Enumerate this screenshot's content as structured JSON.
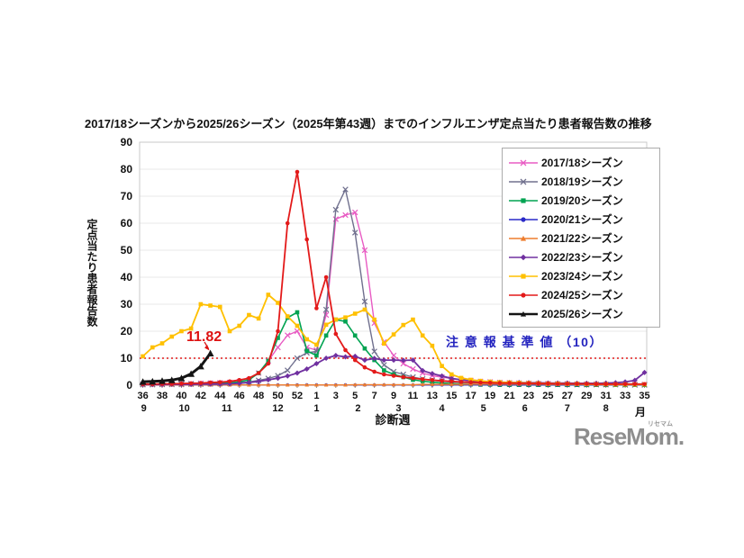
{
  "chart_data": {
    "type": "line",
    "title": "2017/18シーズンから2025/26シーズン（2025年第43週）までのインフルエンザ定点当たり患者報告数の推移",
    "ylabel": "定点当たり患者報告数",
    "xlabel": "診断週",
    "month_unit": "月",
    "ylim": [
      0,
      90
    ],
    "y_ticks": [
      0,
      10,
      20,
      30,
      40,
      50,
      60,
      70,
      80,
      90
    ],
    "grid": true,
    "legend_position": "top-right",
    "weeks": [
      36,
      37,
      38,
      39,
      40,
      41,
      42,
      43,
      44,
      45,
      46,
      47,
      48,
      49,
      50,
      51,
      52,
      53,
      1,
      2,
      3,
      4,
      5,
      6,
      7,
      8,
      9,
      10,
      11,
      12,
      13,
      14,
      15,
      16,
      17,
      18,
      19,
      20,
      21,
      22,
      23,
      24,
      25,
      26,
      27,
      28,
      29,
      30,
      31,
      32,
      33,
      34,
      35
    ],
    "x_tick_weeks": [
      36,
      38,
      40,
      42,
      44,
      46,
      48,
      50,
      52,
      1,
      3,
      5,
      7,
      9,
      11,
      13,
      15,
      17,
      19,
      21,
      23,
      25,
      27,
      29,
      31,
      33,
      35
    ],
    "month_ticks": [
      {
        "label": "9",
        "pos": 0.1
      },
      {
        "label": "10",
        "pos": 4.3
      },
      {
        "label": "11",
        "pos": 8.7
      },
      {
        "label": "12",
        "pos": 14
      },
      {
        "label": "1",
        "pos": 18
      },
      {
        "label": "2",
        "pos": 22.3
      },
      {
        "label": "3",
        "pos": 26.5
      },
      {
        "label": "4",
        "pos": 31
      },
      {
        "label": "5",
        "pos": 35.3
      },
      {
        "label": "6",
        "pos": 39.6
      },
      {
        "label": "7",
        "pos": 44
      },
      {
        "label": "8",
        "pos": 48
      }
    ],
    "threshold": {
      "value": 10,
      "label": "注 意 報 基 準 値 （10）",
      "text_color": "#2323bf",
      "line_color": "#e01b1b"
    },
    "annotation": {
      "text": "11.82",
      "series": "2025/26シーズン",
      "week": 43,
      "value": 11.82,
      "color": "#dd1111"
    },
    "series": [
      {
        "name": "2017/18シーズン",
        "color": "#e85bc3",
        "marker": "x",
        "width": 1.4,
        "values": [
          0.3,
          0.3,
          0.4,
          0.4,
          0.5,
          0.6,
          0.7,
          0.8,
          0.9,
          1.0,
          1.3,
          2.0,
          4.5,
          9,
          14,
          18.5,
          20,
          14,
          13,
          26,
          61.5,
          63,
          64,
          50,
          23,
          16,
          11,
          8,
          6,
          4.5,
          3.5,
          3,
          2.5,
          2,
          1.7,
          1.4,
          1.2,
          1.0,
          0.9,
          0.8,
          0.7,
          0.6,
          0.6,
          0.5,
          0.5,
          0.4,
          0.4,
          0.4,
          0.3,
          0.3,
          0.3,
          0.3,
          0.3
        ]
      },
      {
        "name": "2018/19シーズン",
        "color": "#70708e",
        "marker": "x",
        "width": 1.4,
        "values": [
          0.2,
          0.2,
          0.3,
          0.3,
          0.3,
          0.4,
          0.4,
          0.5,
          0.6,
          0.7,
          0.9,
          1.2,
          1.8,
          2.5,
          3.5,
          5.5,
          10,
          12,
          12.5,
          28,
          65,
          72.5,
          56.5,
          31,
          12.5,
          7.5,
          5,
          4,
          3,
          2.3,
          1.8,
          1.5,
          1.2,
          1.0,
          0.9,
          0.8,
          0.7,
          0.6,
          0.5,
          0.5,
          0.4,
          0.4,
          0.3,
          0.3,
          0.3,
          0.2,
          0.2,
          0.2,
          0.2,
          0.2,
          0.1,
          0.1,
          0.1
        ]
      },
      {
        "name": "2019/20シーズン",
        "color": "#00a351",
        "marker": "square",
        "width": 1.6,
        "values": [
          0.3,
          0.3,
          0.3,
          0.4,
          0.4,
          0.5,
          0.5,
          0.6,
          0.7,
          0.9,
          1.2,
          2,
          4.5,
          9,
          17.5,
          25,
          27,
          12.7,
          11,
          18.4,
          24.3,
          23.6,
          18.4,
          13.6,
          9.3,
          5.5,
          4,
          3,
          2,
          1.5,
          1.1,
          0.8,
          0.6,
          0.4,
          0.3,
          0.2,
          0.2,
          0.1,
          0.1,
          0.1,
          0.1,
          0.1,
          0.1,
          0.1,
          0.1,
          0.1,
          0.1,
          0.1,
          0.1,
          0.1,
          0.1,
          0.1,
          0.1
        ]
      },
      {
        "name": "2020/21シーズン",
        "color": "#2a2ac8",
        "marker": "circle",
        "width": 1.4,
        "values": [
          0.1,
          0.1,
          0.1,
          0.1,
          0.1,
          0.1,
          0.1,
          0.1,
          0.1,
          0.1,
          0.1,
          0.1,
          0.1,
          0.1,
          0.1,
          0.1,
          0.1,
          0.1,
          0.1,
          0.1,
          0.1,
          0.1,
          0.1,
          0.1,
          0.1,
          0.1,
          0.1,
          0.1,
          0.1,
          0.1,
          0.1,
          0.1,
          0.1,
          0.1,
          0.1,
          0.1,
          0.1,
          0.1,
          0.1,
          0.1,
          0.1,
          0.1,
          0.1,
          0.1,
          0.1,
          0.1,
          0.1,
          0.1,
          0.1,
          0.1,
          0.1,
          0.1,
          0.1
        ]
      },
      {
        "name": "2021/22シーズン",
        "color": "#ee7d2e",
        "marker": "triangle",
        "width": 1.4,
        "values": [
          0.1,
          0.1,
          0.1,
          0.1,
          0.1,
          0.1,
          0.1,
          0.1,
          0.1,
          0.1,
          0.1,
          0.1,
          0.1,
          0.1,
          0.1,
          0.1,
          0.1,
          0.1,
          0.1,
          0.1,
          0.1,
          0.1,
          0.2,
          0.2,
          0.2,
          0.2,
          0.2,
          0.2,
          0.2,
          0.3,
          0.3,
          0.3,
          0.3,
          0.3,
          0.4,
          0.4,
          0.4,
          0.4,
          0.4,
          0.4,
          0.4,
          0.4,
          0.3,
          0.3,
          0.3,
          0.3,
          0.3,
          0.2,
          0.2,
          0.2,
          0.2,
          0.2,
          0.2
        ]
      },
      {
        "name": "2022/23シーズン",
        "color": "#7030a0",
        "marker": "diamond",
        "width": 1.8,
        "values": [
          0.2,
          0.2,
          0.2,
          0.3,
          0.3,
          0.3,
          0.4,
          0.4,
          0.4,
          0.5,
          0.7,
          1.0,
          1.4,
          2.0,
          2.6,
          3.4,
          4.5,
          6,
          8,
          10,
          11,
          10.5,
          10.7,
          9.3,
          9.9,
          9.3,
          9.3,
          9.2,
          9.3,
          5.4,
          4.3,
          3.4,
          2.5,
          2,
          1.7,
          1.4,
          1.2,
          1.1,
          1.0,
          1.0,
          0.9,
          0.9,
          0.8,
          0.8,
          0.8,
          0.7,
          0.7,
          0.7,
          0.8,
          0.9,
          1.2,
          1.8,
          4.7
        ]
      },
      {
        "name": "2023/24シーズン",
        "color": "#ffc000",
        "marker": "square",
        "width": 1.8,
        "values": [
          10.7,
          14,
          15.5,
          18,
          20,
          21,
          30,
          29.5,
          29,
          20,
          22,
          26,
          24.7,
          33.5,
          30.5,
          25.5,
          22,
          17,
          15,
          22.4,
          24.3,
          25.1,
          26.5,
          28,
          24.3,
          15.4,
          18.8,
          22.3,
          24.3,
          18.4,
          14.6,
          7.1,
          4,
          2.7,
          2,
          1.6,
          1.3,
          1.1,
          1.0,
          0.9,
          0.8,
          0.7,
          0.6,
          0.6,
          0.5,
          0.5,
          0.4,
          0.4,
          0.4,
          0.3,
          0.3,
          0.3,
          0.3
        ]
      },
      {
        "name": "2024/25シーズン",
        "color": "#e31a1a",
        "marker": "circle",
        "width": 1.8,
        "values": [
          0.4,
          0.4,
          0.5,
          0.5,
          0.6,
          0.7,
          0.8,
          1.0,
          1.1,
          1.4,
          1.9,
          2.6,
          4.5,
          8,
          20,
          60,
          79,
          54,
          28.5,
          40,
          19,
          13,
          9.3,
          6.6,
          5,
          4,
          3.5,
          3,
          2.6,
          2.2,
          1.9,
          1.6,
          1.4,
          1.2,
          1.1,
          1.0,
          0.9,
          0.8,
          0.8,
          0.7,
          0.7,
          0.6,
          0.6,
          0.5,
          0.5,
          0.5,
          0.5,
          0.4,
          0.4,
          0.4,
          0.4,
          0.4,
          0.4
        ]
      },
      {
        "name": "2025/26シーズン",
        "color": "#141414",
        "marker": "triangle",
        "width": 3,
        "values": [
          1.3,
          1.4,
          1.6,
          1.9,
          2.6,
          4.2,
          7.0,
          11.82,
          null,
          null,
          null,
          null,
          null,
          null,
          null,
          null,
          null,
          null,
          null,
          null,
          null,
          null,
          null,
          null,
          null,
          null,
          null,
          null,
          null,
          null,
          null,
          null,
          null,
          null,
          null,
          null,
          null,
          null,
          null,
          null,
          null,
          null,
          null,
          null,
          null,
          null,
          null,
          null,
          null,
          null,
          null,
          null,
          null
        ]
      }
    ]
  },
  "logo": {
    "text": "ReseMom.",
    "ruby": "リセマム"
  }
}
